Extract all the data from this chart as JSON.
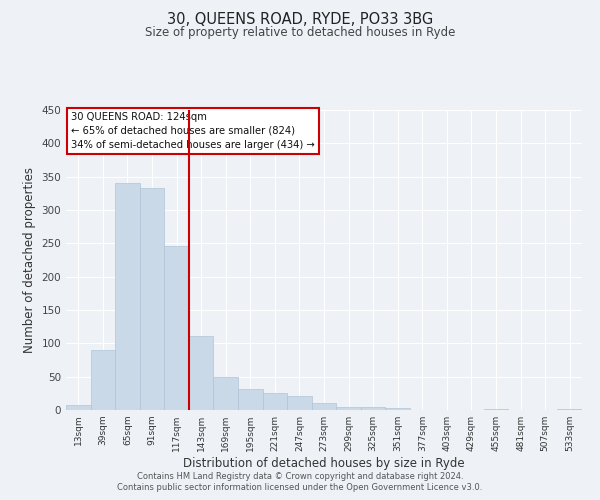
{
  "title": "30, QUEENS ROAD, RYDE, PO33 3BG",
  "subtitle": "Size of property relative to detached houses in Ryde",
  "xlabel": "Distribution of detached houses by size in Ryde",
  "ylabel": "Number of detached properties",
  "categories": [
    "13sqm",
    "39sqm",
    "65sqm",
    "91sqm",
    "117sqm",
    "143sqm",
    "169sqm",
    "195sqm",
    "221sqm",
    "247sqm",
    "273sqm",
    "299sqm",
    "325sqm",
    "351sqm",
    "377sqm",
    "403sqm",
    "429sqm",
    "455sqm",
    "481sqm",
    "507sqm",
    "533sqm"
  ],
  "values": [
    7,
    90,
    340,
    333,
    246,
    111,
    49,
    31,
    25,
    21,
    10,
    5,
    4,
    3,
    0,
    0,
    0,
    2,
    0,
    0,
    1
  ],
  "bar_color": "#c9d9e8",
  "bar_edge_color": "#b0c4d8",
  "vline_color": "#cc0000",
  "annotation_line1": "30 QUEENS ROAD: 124sqm",
  "annotation_line2": "← 65% of detached houses are smaller (824)",
  "annotation_line3": "34% of semi-detached houses are larger (434) →",
  "annotation_box_color": "#cc0000",
  "ylim": [
    0,
    450
  ],
  "yticks": [
    0,
    50,
    100,
    150,
    200,
    250,
    300,
    350,
    400,
    450
  ],
  "bg_color": "#eef2f7",
  "grid_color": "#ffffff",
  "footer_line1": "Contains HM Land Registry data © Crown copyright and database right 2024.",
  "footer_line2": "Contains public sector information licensed under the Open Government Licence v3.0."
}
